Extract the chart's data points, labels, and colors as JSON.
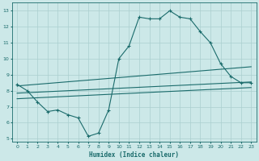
{
  "xlabel": "Humidex (Indice chaleur)",
  "background_color": "#cce8e8",
  "grid_color": "#aacfcf",
  "line_color": "#1a6b6b",
  "xlim": [
    -0.5,
    23.5
  ],
  "ylim": [
    4.8,
    13.5
  ],
  "xticks": [
    0,
    1,
    2,
    3,
    4,
    5,
    6,
    7,
    8,
    9,
    10,
    11,
    12,
    13,
    14,
    15,
    16,
    17,
    18,
    19,
    20,
    21,
    22,
    23
  ],
  "yticks": [
    5,
    6,
    7,
    8,
    9,
    10,
    11,
    12,
    13
  ],
  "series": {
    "zigzag": {
      "x": [
        0,
        1,
        2,
        3,
        4,
        5,
        6,
        7,
        8,
        9,
        10,
        11,
        12,
        13,
        14,
        15,
        16,
        17,
        18,
        19,
        20,
        21,
        22,
        23
      ],
      "y": [
        8.4,
        8.0,
        7.3,
        6.7,
        6.8,
        6.5,
        6.3,
        5.15,
        5.35,
        6.8,
        10.0,
        10.8,
        12.6,
        12.5,
        12.5,
        13.0,
        12.6,
        12.5,
        11.7,
        11.0,
        9.7,
        8.9,
        8.5,
        8.5
      ]
    },
    "trend1": {
      "x": [
        0,
        23
      ],
      "y": [
        8.3,
        9.5
      ]
    },
    "trend2": {
      "x": [
        0,
        23
      ],
      "y": [
        7.85,
        8.55
      ]
    },
    "trend3": {
      "x": [
        0,
        23
      ],
      "y": [
        7.5,
        8.2
      ]
    }
  }
}
